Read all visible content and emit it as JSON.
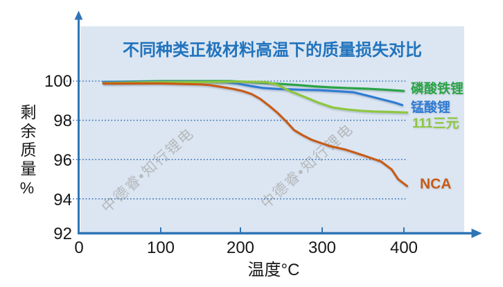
{
  "chart_data": {
    "type": "line",
    "title": "不同种类正极材料高温下的质量损失对比",
    "xlabel": "温度°C",
    "ylabel": "剩余质量%",
    "xlim": [
      0,
      480
    ],
    "ylim": [
      92,
      100.8
    ],
    "x_ticks": [
      "0",
      "100",
      "200",
      "300",
      "400"
    ],
    "y_ticks": [
      "100",
      "98",
      "96",
      "94",
      "92"
    ],
    "grid": "horizontal-dotted",
    "legend_position": "right-of-curve-ends",
    "series": [
      {
        "name": "磷酸铁锂",
        "color": "#2aa347",
        "points": [
          [
            30,
            99.95
          ],
          [
            100,
            100
          ],
          [
            150,
            100
          ],
          [
            185,
            100
          ],
          [
            210,
            99.95
          ],
          [
            230,
            99.9
          ],
          [
            250,
            99.85
          ],
          [
            270,
            99.8
          ],
          [
            290,
            99.73
          ],
          [
            312,
            99.68
          ],
          [
            335,
            99.64
          ],
          [
            355,
            99.61
          ],
          [
            378,
            99.56
          ],
          [
            400,
            99.5
          ]
        ]
      },
      {
        "name": "锰酸锂",
        "color": "#2f7bd4",
        "points": [
          [
            30,
            99.95
          ],
          [
            100,
            99.97
          ],
          [
            150,
            99.97
          ],
          [
            180,
            99.95
          ],
          [
            195,
            99.88
          ],
          [
            210,
            99.76
          ],
          [
            227,
            99.65
          ],
          [
            245,
            99.6
          ],
          [
            261,
            99.58
          ],
          [
            280,
            99.55
          ],
          [
            295,
            99.54
          ],
          [
            320,
            99.48
          ],
          [
            338,
            99.43
          ],
          [
            355,
            99.26
          ],
          [
            372,
            99.08
          ],
          [
            389,
            98.9
          ],
          [
            398,
            98.78
          ]
        ]
      },
      {
        "name": "111三元",
        "color": "#8ec63e",
        "points": [
          [
            30,
            99.9
          ],
          [
            100,
            99.95
          ],
          [
            150,
            99.95
          ],
          [
            200,
            99.97
          ],
          [
            231,
            99.95
          ],
          [
            244,
            99.82
          ],
          [
            261,
            99.47
          ],
          [
            278,
            99.19
          ],
          [
            295,
            98.9
          ],
          [
            312,
            98.66
          ],
          [
            329,
            98.56
          ],
          [
            346,
            98.49
          ],
          [
            363,
            98.45
          ],
          [
            380,
            98.43
          ],
          [
            404,
            98.4
          ]
        ]
      },
      {
        "name": "NCA",
        "color": "#c75b17",
        "points": [
          [
            30,
            99.88
          ],
          [
            100,
            99.88
          ],
          [
            150,
            99.83
          ],
          [
            160,
            99.8
          ],
          [
            176,
            99.7
          ],
          [
            190,
            99.6
          ],
          [
            201,
            99.5
          ],
          [
            212,
            99.35
          ],
          [
            223,
            99.1
          ],
          [
            234,
            98.75
          ],
          [
            244,
            98.4
          ],
          [
            255,
            97.95
          ],
          [
            265,
            97.5
          ],
          [
            275,
            97.25
          ],
          [
            287,
            97.0
          ],
          [
            308,
            96.7
          ],
          [
            329,
            96.5
          ],
          [
            351,
            96.2
          ],
          [
            372,
            95.9
          ],
          [
            385,
            95.5
          ],
          [
            393,
            95.0
          ],
          [
            404,
            94.65
          ]
        ]
      }
    ],
    "colors": {
      "title": "#2173bd",
      "axis": "#2e75b6",
      "gridline": "#3c74b8",
      "plot_background": "#dbe6f2",
      "tick_text": "#171717"
    }
  },
  "watermark": {
    "text": "中德睿•知行锂电"
  }
}
